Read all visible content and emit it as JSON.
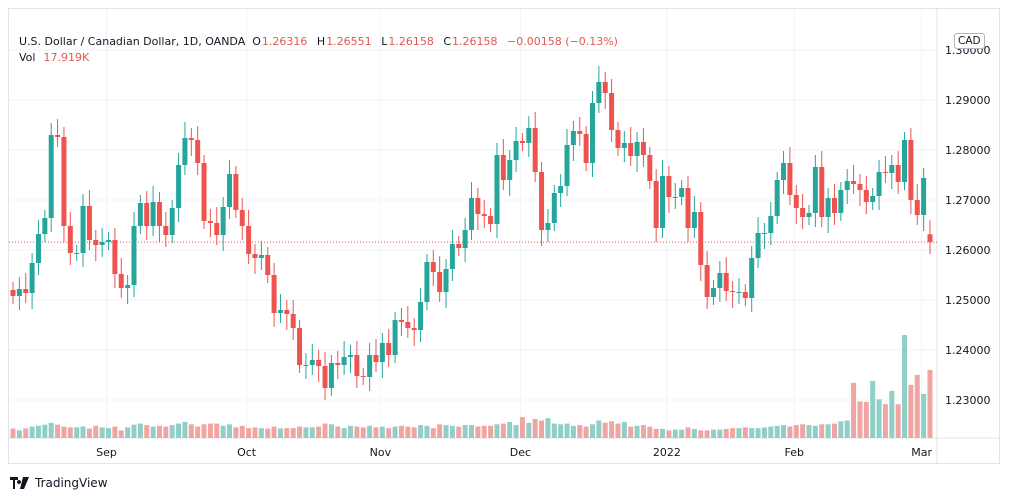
{
  "legend": {
    "symbol": "U.S. Dollar / Canadian Dollar, 1D, OANDA",
    "o_label": "O",
    "o": "1.26316",
    "h_label": "H",
    "h": "1.26551",
    "l_label": "L",
    "l": "1.26158",
    "c_label": "C",
    "c": "1.26158",
    "change": "−0.00158 (−0.13%)",
    "vol_label": "Vol",
    "vol": "17.919K"
  },
  "currency_badge": "CAD",
  "brand": "TradingView",
  "colors": {
    "up": "#26a69a",
    "down": "#ef5350",
    "up_vol": "#8fcfc7",
    "down_vol": "#f0a5a2",
    "grid": "#f0f3fa"
  },
  "chart_data": {
    "type": "candlestick",
    "title": "U.S. Dollar / Canadian Dollar, 1D, OANDA",
    "ylim": [
      1.2224,
      1.3056
    ],
    "y_ticks": [
      "1.30000",
      "1.29000",
      "1.28000",
      "1.27000",
      "1.26000",
      "1.25000",
      "1.24000",
      "1.23000"
    ],
    "x_ticks": [
      {
        "label": "Sep",
        "index": 15
      },
      {
        "label": "Oct",
        "index": 37
      },
      {
        "label": "Nov",
        "index": 58
      },
      {
        "label": "Dec",
        "index": 80
      },
      {
        "label": "2022",
        "index": 103
      },
      {
        "label": "Feb",
        "index": 123
      },
      {
        "label": "Mar",
        "index": 143
      }
    ],
    "last_price": 1.26158,
    "first_open": 1.252,
    "last_open": 1.26316,
    "close": [
      1.2508,
      1.2522,
      1.2514,
      1.2574,
      1.2632,
      1.2664,
      1.283,
      1.2826,
      1.2648,
      1.2594,
      1.2594,
      1.2688,
      1.262,
      1.261,
      1.2616,
      1.262,
      1.2552,
      1.2524,
      1.253,
      1.2648,
      1.2694,
      1.2648,
      1.2696,
      1.2648,
      1.263,
      1.2684,
      1.277,
      1.2824,
      1.282,
      1.2774,
      1.2658,
      1.2654,
      1.263,
      1.2686,
      1.2752,
      1.268,
      1.2648,
      1.2592,
      1.2584,
      1.259,
      1.255,
      1.2474,
      1.248,
      1.2472,
      1.2444,
      1.237,
      1.237,
      1.238,
      1.2368,
      1.2324,
      1.2374,
      1.237,
      1.2386,
      1.239,
      1.2348,
      1.2346,
      1.239,
      1.2376,
      1.2414,
      1.239,
      1.246,
      1.2456,
      1.2444,
      1.244,
      1.2496,
      1.2576,
      1.2556,
      1.2516,
      1.2562,
      1.2612,
      1.2604,
      1.264,
      1.2704,
      1.2672,
      1.2668,
      1.2652,
      1.279,
      1.274,
      1.278,
      1.2818,
      1.2814,
      1.2844,
      1.2756,
      1.264,
      1.2654,
      1.2714,
      1.2728,
      1.281,
      1.2838,
      1.2832,
      1.2774,
      1.2894,
      1.2936,
      1.2914,
      1.284,
      1.2804,
      1.2814,
      1.2788,
      1.2816,
      1.279,
      1.2738,
      1.2644,
      1.2748,
      1.2706,
      1.2706,
      1.2724,
      1.2644,
      1.2676,
      1.257,
      1.2506,
      1.2524,
      1.2554,
      1.2518,
      1.2516,
      1.2516,
      1.2504,
      1.2584,
      1.2634,
      1.2634,
      1.2668,
      1.274,
      1.2774,
      1.271,
      1.2684,
      1.2666,
      1.2674,
      1.2766,
      1.2666,
      1.2704,
      1.2674,
      1.272,
      1.2738,
      1.2732,
      1.272,
      1.2696,
      1.2708,
      1.2756,
      1.2754,
      1.277,
      1.2736,
      1.282,
      1.27,
      1.267,
      1.2744,
      1.26158
    ],
    "volume_k": [
      2.5,
      2.0,
      2.5,
      3.0,
      3.2,
      3.5,
      4.0,
      3.5,
      3.0,
      2.8,
      2.8,
      3.0,
      2.5,
      3.2,
      2.8,
      2.6,
      3.0,
      2.0,
      2.8,
      3.5,
      3.8,
      3.4,
      3.0,
      3.2,
      3.0,
      3.4,
      3.8,
      4.2,
      3.6,
      3.0,
      3.6,
      3.8,
      3.8,
      3.2,
      3.6,
      2.8,
      3.2,
      2.6,
      2.8,
      2.6,
      2.5,
      3.0,
      2.5,
      2.6,
      2.6,
      3.0,
      2.8,
      2.8,
      3.0,
      3.8,
      3.6,
      3.0,
      2.6,
      3.2,
      3.0,
      2.8,
      3.2,
      2.8,
      3.0,
      2.6,
      3.0,
      3.2,
      3.0,
      2.8,
      3.4,
      3.2,
      2.6,
      3.6,
      3.4,
      3.2,
      3.0,
      3.4,
      3.4,
      3.0,
      3.2,
      3.2,
      3.6,
      3.8,
      4.2,
      3.4,
      5.5,
      4.0,
      5.0,
      4.6,
      5.2,
      3.8,
      3.6,
      3.8,
      3.2,
      3.4,
      3.0,
      3.6,
      4.6,
      4.0,
      4.4,
      3.8,
      4.2,
      3.0,
      3.2,
      3.4,
      3.0,
      2.4,
      2.4,
      2.0,
      2.2,
      2.2,
      2.8,
      2.4,
      2.0,
      2.0,
      2.2,
      2.2,
      2.4,
      2.6,
      2.6,
      2.8,
      2.6,
      2.6,
      2.8,
      3.0,
      3.2,
      3.4,
      3.0,
      3.4,
      3.6,
      3.4,
      3.2,
      3.6,
      3.6,
      3.8,
      4.4,
      4.6,
      14.5,
      9.6,
      9.5,
      15.0,
      10.2,
      8.9,
      12.4,
      8.9,
      27.1,
      14.0,
      16.6,
      11.6,
      17.919
    ]
  }
}
